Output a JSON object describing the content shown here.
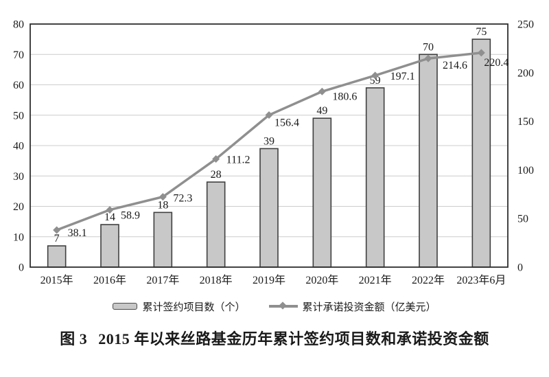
{
  "figure": {
    "caption_prefix": "图 3",
    "caption_text": "2015 年以来丝路基金历年累计签约项目数和承诺投资金额"
  },
  "legend": {
    "bar_label": "累计签约项目数（个）",
    "line_label": "累计承诺投资金额（亿美元）"
  },
  "colors": {
    "bar_fill": "#c8c8c8",
    "bar_stroke": "#3f3f3f",
    "line": "#8f8f8f",
    "grid": "#cccccc",
    "frame": "#2e2e2e",
    "text": "#1a1a1a"
  },
  "chart_data": {
    "type": "bar",
    "subtype": "bar+line combo",
    "categories": [
      "2015年",
      "2016年",
      "2017年",
      "2018年",
      "2019年",
      "2020年",
      "2021年",
      "2022年",
      "2023年6月"
    ],
    "series": [
      {
        "name": "累计签约项目数（个）",
        "type": "bar",
        "axis": "left",
        "values": [
          7,
          14,
          18,
          28,
          39,
          49,
          59,
          70,
          75
        ]
      },
      {
        "name": "累计承诺投资金额（亿美元）",
        "type": "line",
        "axis": "right",
        "values": [
          38.1,
          58.9,
          72.3,
          111.2,
          156.4,
          180.6,
          197.1,
          214.6,
          220.4
        ]
      }
    ],
    "left_axis": {
      "min": 0,
      "max": 80,
      "step": 10,
      "ticks": [
        0,
        10,
        20,
        30,
        40,
        50,
        60,
        70,
        80
      ]
    },
    "right_axis": {
      "min": 0,
      "max": 250,
      "step": 50,
      "ticks": [
        0,
        50,
        100,
        150,
        200,
        250
      ]
    },
    "grid": "horizontal gridlines at left-axis ticks",
    "legend_position": "bottom",
    "data_labels": "bar values above bars; line values right of markers",
    "title": "图 3 2015 年以来丝路基金历年累计签约项目数和承诺投资金额",
    "xlabel": "",
    "ylabel_left": "累计签约项目数（个）",
    "ylabel_right": "累计承诺投资金额（亿美元）"
  }
}
